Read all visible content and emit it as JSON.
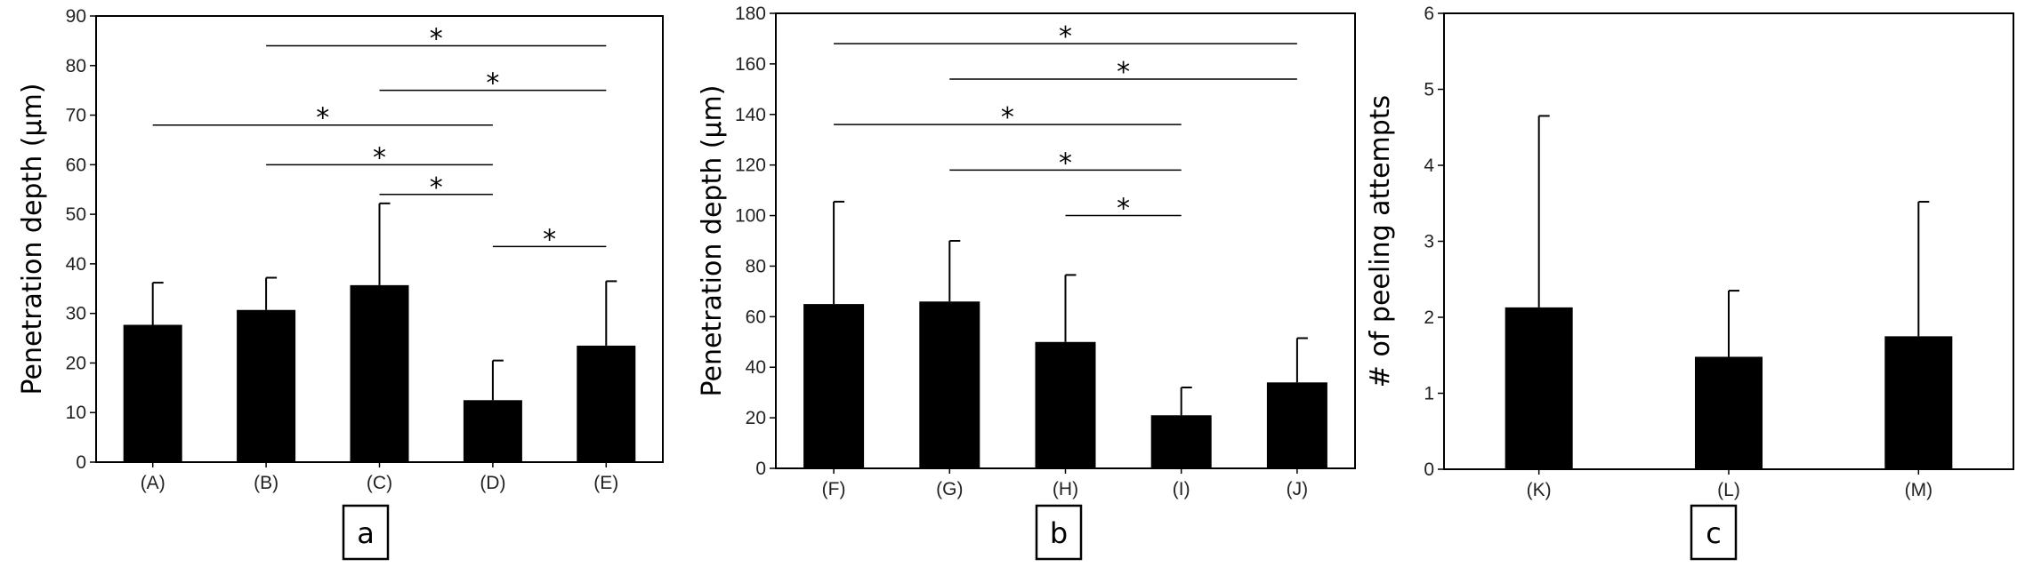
{
  "chart_data": [
    {
      "type": "bar",
      "panel_label": "a",
      "ylabel": "Penetration depth (μm)",
      "ylim": [
        0,
        90
      ],
      "yticks": [
        0,
        10,
        20,
        30,
        40,
        50,
        60,
        70,
        80,
        90
      ],
      "categories": [
        "(A)",
        "(B)",
        "(C)",
        "(D)",
        "(E)"
      ],
      "values": [
        27.7,
        30.7,
        35.7,
        12.5,
        23.5
      ],
      "errors": [
        8.5,
        6.5,
        16.5,
        8.0,
        13.0
      ],
      "bar_color": "#000000",
      "significance": [
        {
          "from": 1,
          "to": 4,
          "y": 84,
          "label": "*"
        },
        {
          "from": 2,
          "to": 4,
          "y": 75,
          "label": "*"
        },
        {
          "from": 0,
          "to": 3,
          "y": 68,
          "label": "*"
        },
        {
          "from": 1,
          "to": 3,
          "y": 60,
          "label": "*"
        },
        {
          "from": 2,
          "to": 3,
          "y": 54,
          "label": "*"
        },
        {
          "from": 3,
          "to": 4,
          "y": 43.5,
          "label": "*"
        }
      ]
    },
    {
      "type": "bar",
      "panel_label": "b",
      "ylabel": "Penetration depth (μm)",
      "ylim": [
        0,
        180
      ],
      "yticks": [
        0,
        20,
        40,
        60,
        80,
        100,
        120,
        140,
        160,
        180
      ],
      "categories": [
        "(F)",
        "(G)",
        "(H)",
        "(I)",
        "(J)"
      ],
      "values": [
        65,
        66,
        50,
        21,
        34
      ],
      "errors": [
        40.5,
        24,
        26.5,
        11,
        17.5
      ],
      "bar_color": "#000000",
      "significance": [
        {
          "from": 0,
          "to": 4,
          "y": 168,
          "label": "*"
        },
        {
          "from": 1,
          "to": 4,
          "y": 154,
          "label": "*"
        },
        {
          "from": 0,
          "to": 3,
          "y": 136,
          "label": "*"
        },
        {
          "from": 1,
          "to": 3,
          "y": 118,
          "label": "*"
        },
        {
          "from": 2,
          "to": 3,
          "y": 100,
          "label": "*"
        }
      ]
    },
    {
      "type": "bar",
      "panel_label": "c",
      "ylabel": "# of peeling attempts",
      "ylim": [
        0,
        6
      ],
      "yticks": [
        0,
        1,
        2,
        3,
        4,
        5,
        6
      ],
      "categories": [
        "(K)",
        "(L)",
        "(M)"
      ],
      "values": [
        2.13,
        1.48,
        1.75
      ],
      "errors": [
        2.52,
        0.87,
        1.77
      ],
      "bar_color": "#000000",
      "significance": []
    }
  ]
}
